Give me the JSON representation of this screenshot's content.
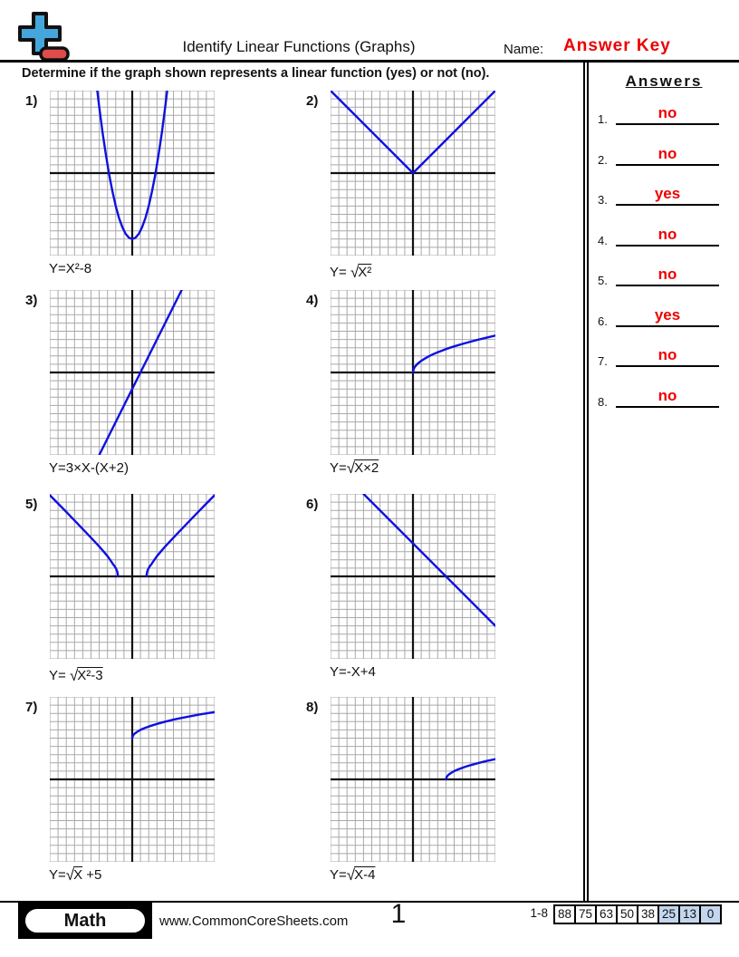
{
  "page": {
    "title": "Identify Linear Functions (Graphs)",
    "name_label": "Name:",
    "name_value": "Answer Key",
    "instruction": "Determine if the graph shown represents a linear function (yes) or not (no).",
    "page_number": "1"
  },
  "answers_panel": {
    "heading": "Answers",
    "items": [
      {
        "num": "1.",
        "value": "no"
      },
      {
        "num": "2.",
        "value": "no"
      },
      {
        "num": "3.",
        "value": "yes"
      },
      {
        "num": "4.",
        "value": "no"
      },
      {
        "num": "5.",
        "value": "no"
      },
      {
        "num": "6.",
        "value": "yes"
      },
      {
        "num": "7.",
        "value": "no"
      },
      {
        "num": "8.",
        "value": "no"
      }
    ]
  },
  "problems": [
    {
      "number": "1)",
      "answer": "no",
      "eq": {
        "pre": "Y=X²-8",
        "sqrt": "",
        "rad": "",
        "post": ""
      },
      "curve_type": "parabola",
      "curves": [
        [
          [
            -4.24,
            10
          ],
          [
            -4,
            8
          ],
          [
            -3.6,
            4.96
          ],
          [
            -3.2,
            2.24
          ],
          [
            -2.8,
            -0.16
          ],
          [
            -2.4,
            -2.24
          ],
          [
            -2,
            -4
          ],
          [
            -1.6,
            -5.44
          ],
          [
            -1.2,
            -6.56
          ],
          [
            -0.8,
            -7.36
          ],
          [
            -0.4,
            -7.84
          ],
          [
            0,
            -8
          ],
          [
            0.4,
            -7.84
          ],
          [
            0.8,
            -7.36
          ],
          [
            1.2,
            -6.56
          ],
          [
            1.6,
            -5.44
          ],
          [
            2,
            -4
          ],
          [
            2.4,
            -2.24
          ],
          [
            2.8,
            -0.16
          ],
          [
            3.2,
            2.24
          ],
          [
            3.6,
            4.96
          ],
          [
            4,
            8
          ],
          [
            4.24,
            10
          ]
        ]
      ]
    },
    {
      "number": "2)",
      "answer": "no",
      "eq": {
        "pre": "Y= ",
        "sqrt": "√",
        "rad": "X²",
        "post": ""
      },
      "curve_type": "absolute-value",
      "curves": [
        [
          [
            -10,
            10
          ],
          [
            0,
            0
          ],
          [
            10,
            10
          ]
        ]
      ]
    },
    {
      "number": "3)",
      "answer": "yes",
      "eq": {
        "pre": "Y=3×X-(X+2)",
        "sqrt": "",
        "rad": "",
        "post": ""
      },
      "curve_type": "line",
      "curves": [
        [
          [
            -4,
            -10
          ],
          [
            6,
            10
          ]
        ]
      ]
    },
    {
      "number": "4)",
      "answer": "no",
      "eq": {
        "pre": "Y=",
        "sqrt": "√",
        "rad": "X×2",
        "post": ""
      },
      "curve_type": "sqrt",
      "curves": [
        [
          [
            0,
            0
          ],
          [
            0.1,
            0.45
          ],
          [
            0.3,
            0.77
          ],
          [
            0.6,
            1.1
          ],
          [
            1,
            1.41
          ],
          [
            1.5,
            1.73
          ],
          [
            2,
            2
          ],
          [
            2.5,
            2.24
          ],
          [
            3,
            2.45
          ],
          [
            4,
            2.83
          ],
          [
            5,
            3.16
          ],
          [
            6,
            3.46
          ],
          [
            7,
            3.74
          ],
          [
            8,
            4
          ],
          [
            9,
            4.24
          ],
          [
            10,
            4.47
          ]
        ]
      ]
    },
    {
      "number": "5)",
      "answer": "no",
      "eq": {
        "pre": "Y= ",
        "sqrt": "√",
        "rad": "X²-3",
        "post": ""
      },
      "curve_type": "sqrt-two-branch",
      "curves": [
        [
          [
            -10,
            9.85
          ],
          [
            -9,
            8.83
          ],
          [
            -8,
            7.81
          ],
          [
            -7,
            6.78
          ],
          [
            -6,
            5.74
          ],
          [
            -5,
            4.69
          ],
          [
            -4,
            3.61
          ],
          [
            -3.5,
            3.04
          ],
          [
            -3,
            2.45
          ],
          [
            -2.6,
            1.89
          ],
          [
            -2.3,
            1.43
          ],
          [
            -2.1,
            1.18
          ],
          [
            -1.95,
            0.9
          ],
          [
            -1.85,
            0.66
          ],
          [
            -1.78,
            0.43
          ],
          [
            -1.73,
            0
          ]
        ],
        [
          [
            1.73,
            0
          ],
          [
            1.78,
            0.43
          ],
          [
            1.85,
            0.66
          ],
          [
            1.95,
            0.9
          ],
          [
            2.1,
            1.18
          ],
          [
            2.3,
            1.43
          ],
          [
            2.6,
            1.89
          ],
          [
            3,
            2.45
          ],
          [
            3.5,
            3.04
          ],
          [
            4,
            3.61
          ],
          [
            5,
            4.69
          ],
          [
            6,
            5.74
          ],
          [
            7,
            6.78
          ],
          [
            8,
            7.81
          ],
          [
            9,
            8.83
          ],
          [
            10,
            9.85
          ]
        ]
      ]
    },
    {
      "number": "6)",
      "answer": "yes",
      "eq": {
        "pre": "Y=-X+4",
        "sqrt": "",
        "rad": "",
        "post": ""
      },
      "curve_type": "line",
      "curves": [
        [
          [
            -6,
            10
          ],
          [
            10,
            -6
          ]
        ]
      ]
    },
    {
      "number": "7)",
      "answer": "no",
      "eq": {
        "pre": "Y=",
        "sqrt": "√",
        "rad": "X",
        "post": " +5"
      },
      "curve_type": "sqrt",
      "curves": [
        [
          [
            0,
            5
          ],
          [
            0.1,
            5.32
          ],
          [
            0.3,
            5.55
          ],
          [
            0.6,
            5.77
          ],
          [
            1,
            6
          ],
          [
            1.5,
            6.22
          ],
          [
            2,
            6.41
          ],
          [
            3,
            6.73
          ],
          [
            4,
            7
          ],
          [
            5,
            7.24
          ],
          [
            6,
            7.45
          ],
          [
            7,
            7.65
          ],
          [
            8,
            7.83
          ],
          [
            9,
            8
          ],
          [
            10,
            8.16
          ]
        ]
      ]
    },
    {
      "number": "8)",
      "answer": "no",
      "eq": {
        "pre": "Y=",
        "sqrt": "√",
        "rad": "X-4",
        "post": ""
      },
      "curve_type": "sqrt",
      "curves": [
        [
          [
            4,
            0
          ],
          [
            4.1,
            0.32
          ],
          [
            4.3,
            0.55
          ],
          [
            4.6,
            0.77
          ],
          [
            5,
            1
          ],
          [
            5.5,
            1.22
          ],
          [
            6,
            1.41
          ],
          [
            6.5,
            1.58
          ],
          [
            7,
            1.73
          ],
          [
            8,
            2
          ],
          [
            9,
            2.24
          ],
          [
            10,
            2.45
          ]
        ]
      ]
    }
  ],
  "graph_spec": {
    "units_x": [
      -10,
      10
    ],
    "units_y": [
      -10,
      10
    ],
    "grid_cells": 20,
    "grid_color": "#a9a9a9",
    "axis_color": "#111111",
    "curve_color": "#1010e0"
  },
  "footer": {
    "brand": "Math",
    "website": "www.CommonCoreSheets.com",
    "range_label": "1-8",
    "scores": [
      {
        "value": "88",
        "highlight": false
      },
      {
        "value": "75",
        "highlight": false
      },
      {
        "value": "63",
        "highlight": false
      },
      {
        "value": "50",
        "highlight": false
      },
      {
        "value": "38",
        "highlight": false
      },
      {
        "value": "25",
        "highlight": true
      },
      {
        "value": "13",
        "highlight": true
      },
      {
        "value": "0",
        "highlight": true
      }
    ]
  },
  "colors": {
    "accent_red": "#ee0000",
    "logo_blue": "#45a6dc",
    "logo_red": "#e04b4b",
    "score_highlight": "#c3d6ee"
  }
}
